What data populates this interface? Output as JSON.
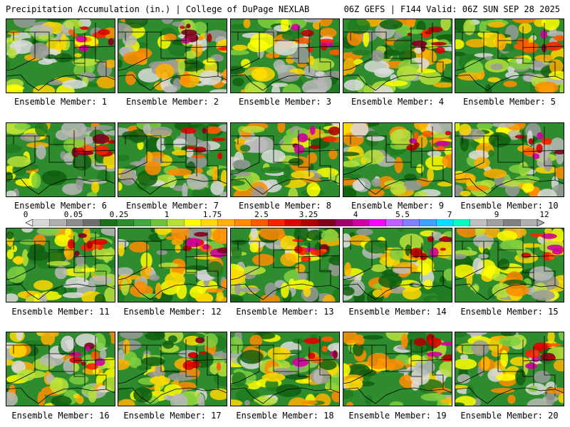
{
  "header": {
    "title_left": "Precipitation Accumulation (in.) | College of DuPage NEXLAB",
    "title_right": "06Z GEFS | F144 Valid: 06Z SUN SEP 28 2025"
  },
  "colorbar": {
    "labels": [
      "0",
      "0.05",
      "0.25",
      "1",
      "1.75",
      "2.5",
      "3.25",
      "4",
      "5.5",
      "7",
      "9",
      "12"
    ],
    "colors": [
      "#d8d8d8",
      "#b0b0b0",
      "#8c8c8c",
      "#6e6e6e",
      "#1e6e1e",
      "#2e8b2e",
      "#3fa83f",
      "#6fc23f",
      "#b8e03a",
      "#ffff00",
      "#ffd800",
      "#ffb000",
      "#ff8c00",
      "#ff5a00",
      "#ff2000",
      "#e00000",
      "#b00000",
      "#800020",
      "#a0006e",
      "#d000a0",
      "#ff00ff",
      "#c060ff",
      "#8080ff",
      "#40a0ff",
      "#00e0ff",
      "#00ffc0",
      "#c0c0c0",
      "#a0a0a0",
      "#808080",
      "#b0b0b0"
    ]
  },
  "members": [
    {
      "label": "Ensemble Member: 1"
    },
    {
      "label": "Ensemble Member: 2"
    },
    {
      "label": "Ensemble Member: 3"
    },
    {
      "label": "Ensemble Member: 4"
    },
    {
      "label": "Ensemble Member: 5"
    },
    {
      "label": "Ensemble Member: 6"
    },
    {
      "label": "Ensemble Member: 7"
    },
    {
      "label": "Ensemble Member: 8"
    },
    {
      "label": "Ensemble Member: 9"
    },
    {
      "label": "Ensemble Member: 10"
    },
    {
      "label": "Ensemble Member: 11"
    },
    {
      "label": "Ensemble Member: 12"
    },
    {
      "label": "Ensemble Member: 13"
    },
    {
      "label": "Ensemble Member: 14"
    },
    {
      "label": "Ensemble Member: 15"
    },
    {
      "label": "Ensemble Member: 16"
    },
    {
      "label": "Ensemble Member: 17"
    },
    {
      "label": "Ensemble Member: 18"
    },
    {
      "label": "Ensemble Member: 19"
    },
    {
      "label": "Ensemble Member: 20"
    }
  ]
}
